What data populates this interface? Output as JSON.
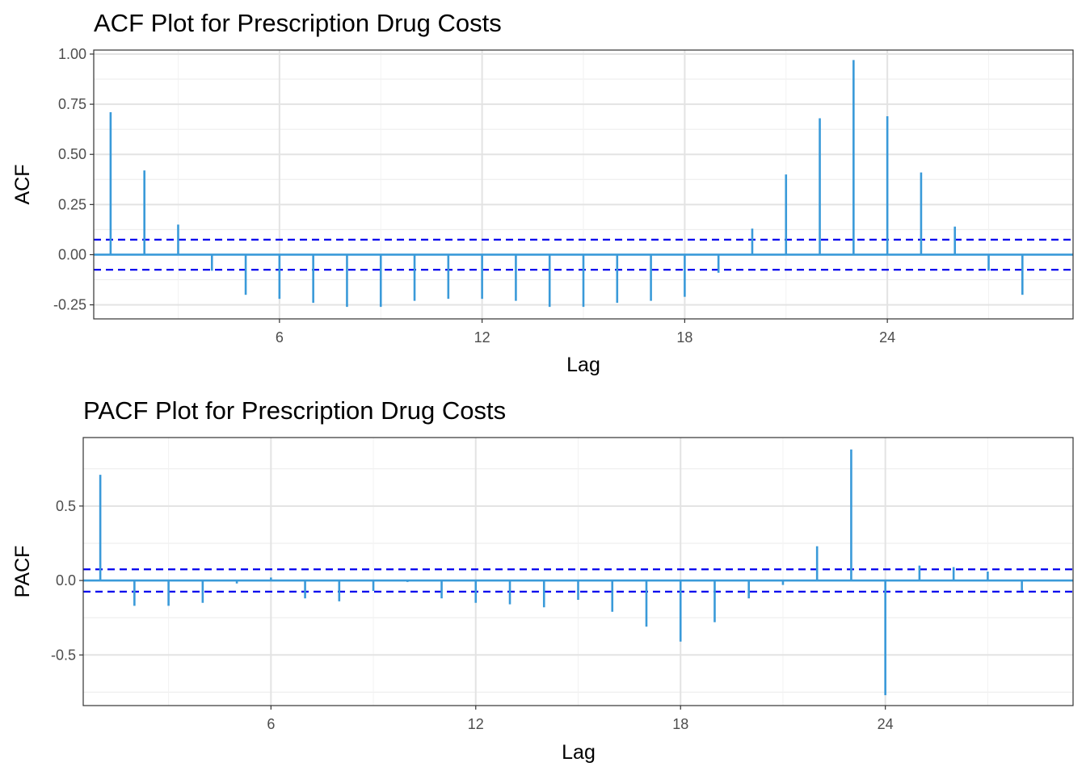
{
  "chart_data": [
    {
      "type": "bar",
      "title": "ACF Plot for Prescription Drug Costs",
      "xlabel": "Lag",
      "ylabel": "ACF",
      "xlim": [
        0.5,
        29.5
      ],
      "ylim": [
        -0.32,
        1.02
      ],
      "xticks": [
        6,
        12,
        18,
        24
      ],
      "yticks": [
        -0.25,
        0,
        0.25,
        0.5,
        0.75,
        1.0
      ],
      "ytick_labels": [
        "-0.25",
        "0.00",
        "0.25",
        "0.50",
        "0.75",
        "1.00"
      ],
      "confidence_bound": 0.075,
      "grid": true,
      "line_color": "#3a9ad9",
      "bound_color": "#0000ee",
      "x": [
        1,
        2,
        3,
        4,
        5,
        6,
        7,
        8,
        9,
        10,
        11,
        12,
        13,
        14,
        15,
        16,
        17,
        18,
        19,
        20,
        21,
        22,
        23,
        24,
        25,
        26,
        27,
        28
      ],
      "values": [
        0.71,
        0.42,
        0.15,
        -0.08,
        -0.2,
        -0.22,
        -0.24,
        -0.26,
        -0.26,
        -0.23,
        -0.22,
        -0.22,
        -0.23,
        -0.26,
        -0.26,
        -0.24,
        -0.23,
        -0.21,
        -0.09,
        0.13,
        0.4,
        0.68,
        0.97,
        0.69,
        0.41,
        0.14,
        -0.08,
        -0.2
      ]
    },
    {
      "type": "bar",
      "title": "PACF Plot for Prescription Drug Costs",
      "xlabel": "Lag",
      "ylabel": "PACF",
      "xlim": [
        0.5,
        29.5
      ],
      "ylim": [
        -0.84,
        0.96
      ],
      "xticks": [
        6,
        12,
        18,
        24
      ],
      "yticks": [
        -0.5,
        0,
        0.5
      ],
      "ytick_labels": [
        "-0.5",
        "0.0",
        "0.5"
      ],
      "confidence_bound": 0.075,
      "grid": true,
      "line_color": "#3a9ad9",
      "bound_color": "#0000ee",
      "x": [
        1,
        2,
        3,
        4,
        5,
        6,
        7,
        8,
        9,
        10,
        11,
        12,
        13,
        14,
        15,
        16,
        17,
        18,
        19,
        20,
        21,
        22,
        23,
        24,
        25,
        26,
        27,
        28
      ],
      "values": [
        0.71,
        -0.17,
        -0.17,
        -0.15,
        -0.02,
        0.02,
        -0.12,
        -0.14,
        -0.07,
        -0.01,
        -0.12,
        -0.15,
        -0.16,
        -0.18,
        -0.13,
        -0.21,
        -0.31,
        -0.41,
        -0.28,
        -0.12,
        -0.03,
        0.23,
        0.88,
        -0.77,
        0.1,
        0.09,
        0.06,
        -0.07
      ]
    }
  ]
}
